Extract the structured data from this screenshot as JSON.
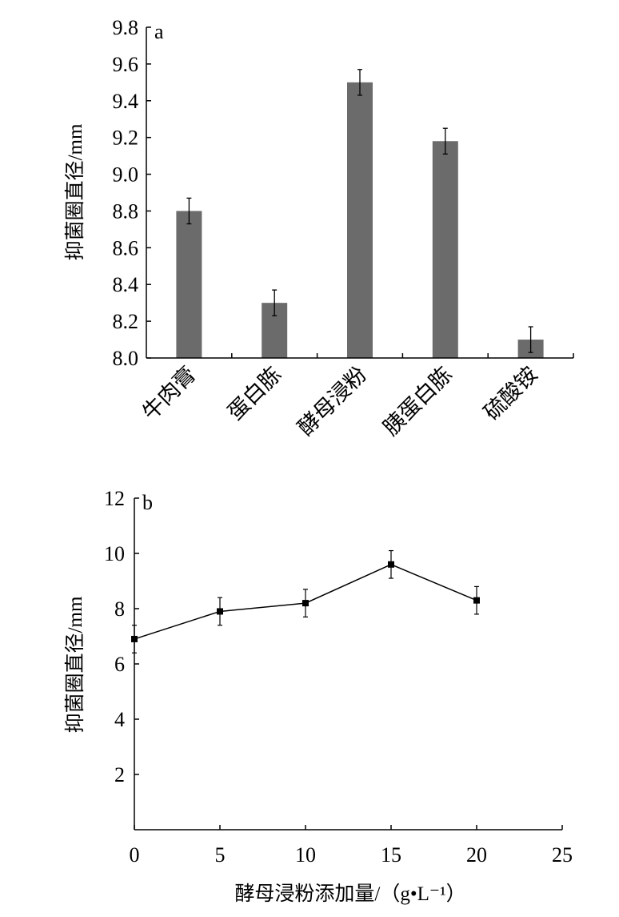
{
  "chart_data": [
    {
      "panel": "a",
      "type": "bar",
      "title": "",
      "panel_label": "a",
      "xlabel": "",
      "ylabel": "抑菌圈直径/mm",
      "ylim": [
        8.0,
        9.8
      ],
      "yticks": [
        "8.0",
        "8.2",
        "8.4",
        "8.6",
        "8.8",
        "9.0",
        "9.2",
        "9.4",
        "9.6",
        "9.8"
      ],
      "categories": [
        "牛肉膏",
        "蛋白胨",
        "酵母浸粉",
        "胰蛋白胨",
        "硫酸铵"
      ],
      "values": [
        8.8,
        8.3,
        9.5,
        9.18,
        8.1
      ],
      "errors": [
        0.07,
        0.07,
        0.07,
        0.07,
        0.07
      ],
      "bar_color": "#6b6b6b",
      "grid": false
    },
    {
      "panel": "b",
      "type": "line",
      "title": "",
      "panel_label": "b",
      "xlabel": "酵母浸粉添加量/（g•L⁻¹）",
      "ylabel": "抑菌圈直径/mm",
      "xlim": [
        0,
        25
      ],
      "ylim": [
        0,
        12
      ],
      "xticks": [
        "0",
        "5",
        "10",
        "15",
        "20",
        "25"
      ],
      "yticks": [
        "2",
        "4",
        "6",
        "8",
        "10",
        "12"
      ],
      "x": [
        0,
        5,
        10,
        15,
        20
      ],
      "values": [
        6.9,
        7.9,
        8.2,
        9.6,
        8.3
      ],
      "errors": [
        0.5,
        0.5,
        0.5,
        0.5,
        0.5
      ],
      "line_color": "#000000",
      "grid": false
    }
  ]
}
